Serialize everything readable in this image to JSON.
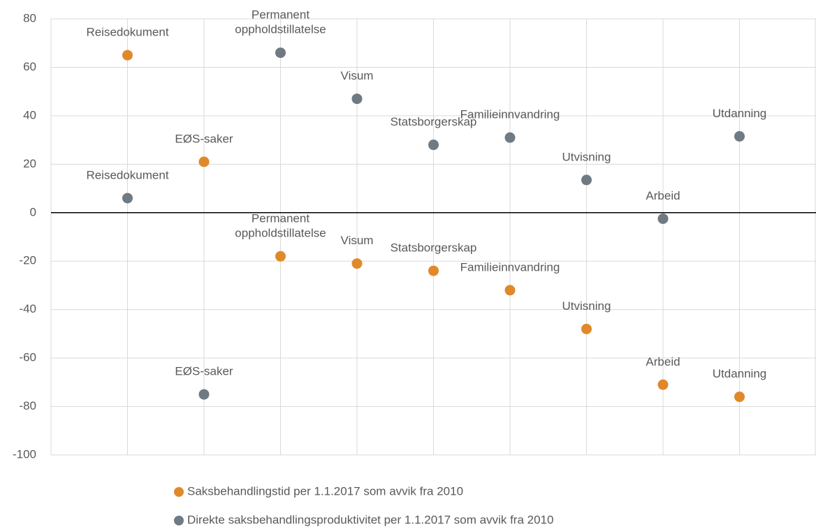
{
  "chart_data": {
    "type": "scatter",
    "categories": [
      "Reisedokument",
      "EØS-saker",
      "Permanent oppholdstillatelse",
      "Visum",
      "Statsborgerskap",
      "Familieinnvandring",
      "Utvisning",
      "Arbeid",
      "Utdanning"
    ],
    "series": [
      {
        "name": "Saksbehandlingstid per 1.1.2017 som avvik fra 2010",
        "color": "#e0892a",
        "values": [
          65,
          21,
          -18,
          -21,
          -24,
          -32,
          -48,
          -71,
          -76
        ]
      },
      {
        "name": "Direkte saksbehandlingsproduktivitet per 1.1.2017 som avvik fra 2010",
        "color": "#6f7a83",
        "values": [
          6,
          -75,
          66,
          47,
          28,
          31,
          13.5,
          -2.5,
          31.5
        ]
      }
    ],
    "ylim": [
      -100,
      80
    ],
    "yticks": [
      -100,
      -80,
      -60,
      -40,
      -20,
      0,
      20,
      40,
      60,
      80
    ],
    "grid": true
  }
}
